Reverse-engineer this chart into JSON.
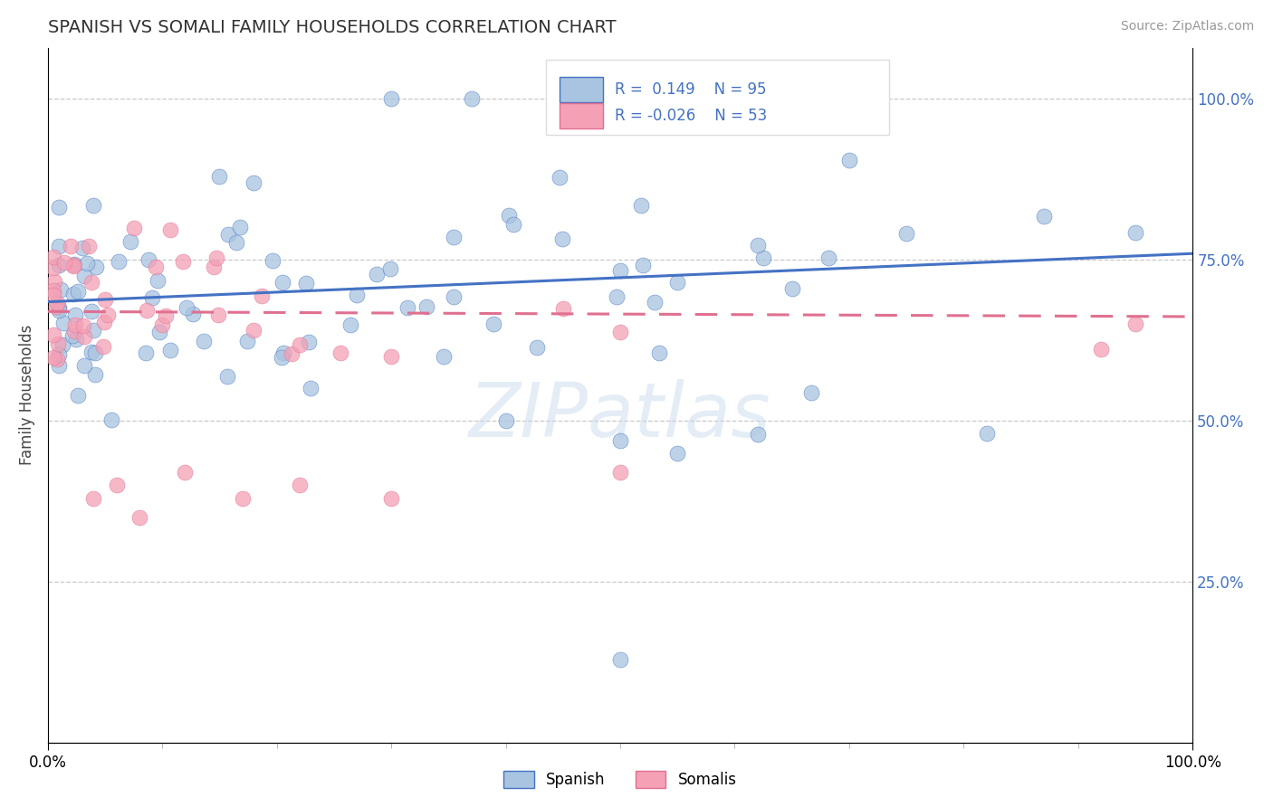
{
  "title": "SPANISH VS SOMALI FAMILY HOUSEHOLDS CORRELATION CHART",
  "source_text": "Source: ZipAtlas.com",
  "ylabel": "Family Households",
  "right_ytick_vals": [
    0.25,
    0.5,
    0.75,
    1.0
  ],
  "right_yticklabels": [
    "25.0%",
    "50.0%",
    "75.0%",
    "100.0%"
  ],
  "xlim": [
    0.0,
    1.0
  ],
  "ylim": [
    0.0,
    1.08
  ],
  "spanish_color": "#a8c4e0",
  "somali_color": "#f4a0b5",
  "spanish_line_color": "#4472c4",
  "somali_line_color": "#e07090",
  "legend_R_spanish": "0.149",
  "legend_N_spanish": "95",
  "legend_R_somali": "-0.026",
  "legend_N_somali": "53",
  "watermark": "ZIPatlas",
  "background_color": "#ffffff",
  "sp_intercept": 0.685,
  "sp_slope": 0.075,
  "so_intercept": 0.67,
  "so_slope": -0.008
}
